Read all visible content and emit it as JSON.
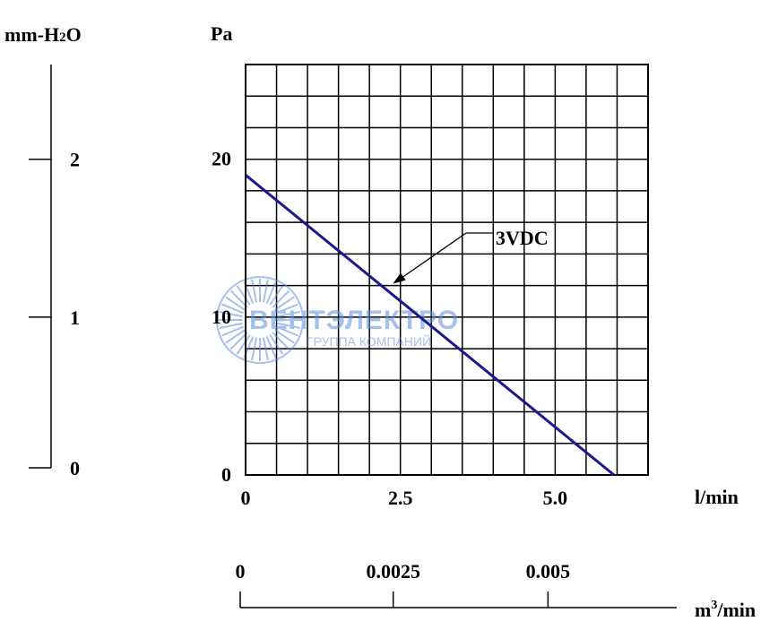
{
  "chart_data": {
    "type": "line",
    "ylabel_left": "mm-H2O",
    "ylabel_left_parts": [
      "mm-H",
      "2",
      "O"
    ],
    "ylabel_right": "Pa",
    "xlabel": "l/min",
    "xlabel2": "m3/min",
    "xlabel2_parts": [
      "m",
      "3",
      "/min"
    ],
    "xlim": [
      0,
      6.5
    ],
    "ylim": [
      0,
      26
    ],
    "x_ticks": [
      "0",
      "2.5",
      "5.0"
    ],
    "x_tick_values": [
      0,
      2.5,
      5.0
    ],
    "x2_ticks": [
      "0",
      "0.0025",
      "0.005"
    ],
    "x2_tick_values": [
      0,
      2.5,
      5.0
    ],
    "y_ticks": [
      "0",
      "10",
      "20"
    ],
    "y_tick_values": [
      0,
      10,
      20
    ],
    "mmh2o_ticks": [
      "0",
      "1",
      "2"
    ],
    "mmh2o_tick_values": [
      0,
      10,
      20
    ],
    "grid": true,
    "grid_cols": 13,
    "grid_rows": 13,
    "series": [
      {
        "name": "3VDC",
        "color": "#1a1a8c",
        "x": [
          0,
          5.95
        ],
        "y": [
          19.0,
          0
        ]
      }
    ],
    "annotation": {
      "text": "3VDC",
      "points_to_x": 2.35,
      "points_to_y": 12.0
    }
  },
  "watermark": {
    "text": "ВЕНТЭЛЕКТРО",
    "subtext": "ГРУППА КОМПАНИЙ",
    "color": "#5b8fe0"
  }
}
